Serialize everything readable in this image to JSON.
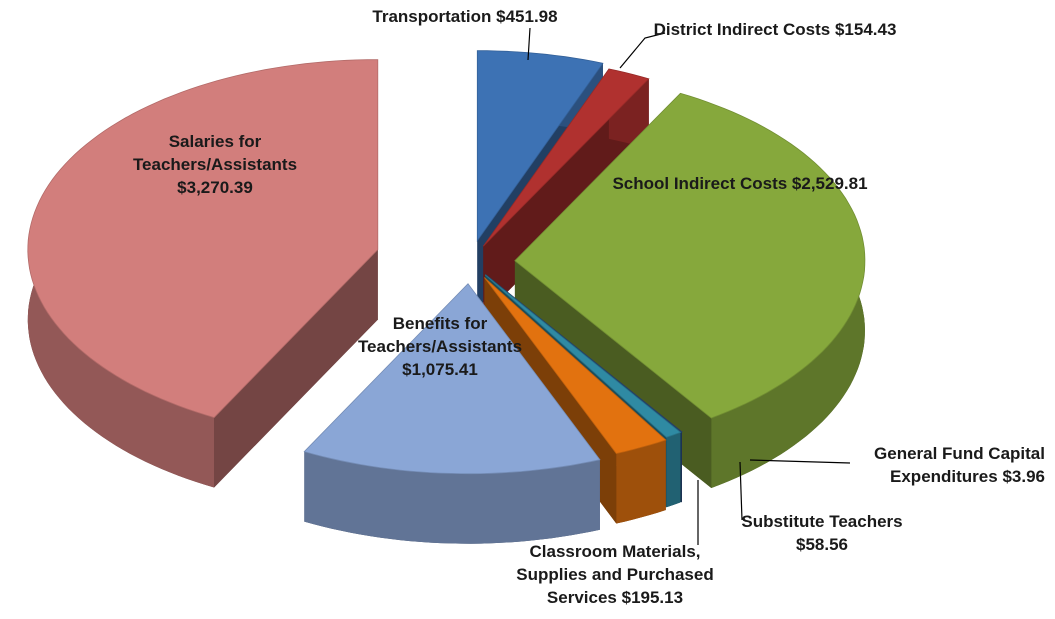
{
  "chart_data": {
    "type": "pie3d",
    "categories": [
      "Transportation",
      "District Indirect Costs",
      "School Indirect Costs",
      "General Fund Capital Expenditures",
      "Substitute Teachers",
      "Classroom Materials, Supplies and Purchased Services",
      "Benefits for Teachers/Assistants",
      "Salaries for Teachers/Assistants"
    ],
    "values": [
      451.98,
      154.43,
      2529.81,
      3.96,
      58.56,
      195.13,
      1075.41,
      3270.39
    ],
    "value_labels": [
      "$451.98",
      "$154.43",
      "$2,529.81",
      "$3.96",
      "$58.56",
      "$195.13",
      "$1,075.41",
      "$3,270.39"
    ],
    "colors": [
      "#3d72b4",
      "#b0312f",
      "#86a83c",
      "#2a4a7a",
      "#2f8aa3",
      "#e2720f",
      "#8aa6d6",
      "#d27e7c"
    ]
  }
}
